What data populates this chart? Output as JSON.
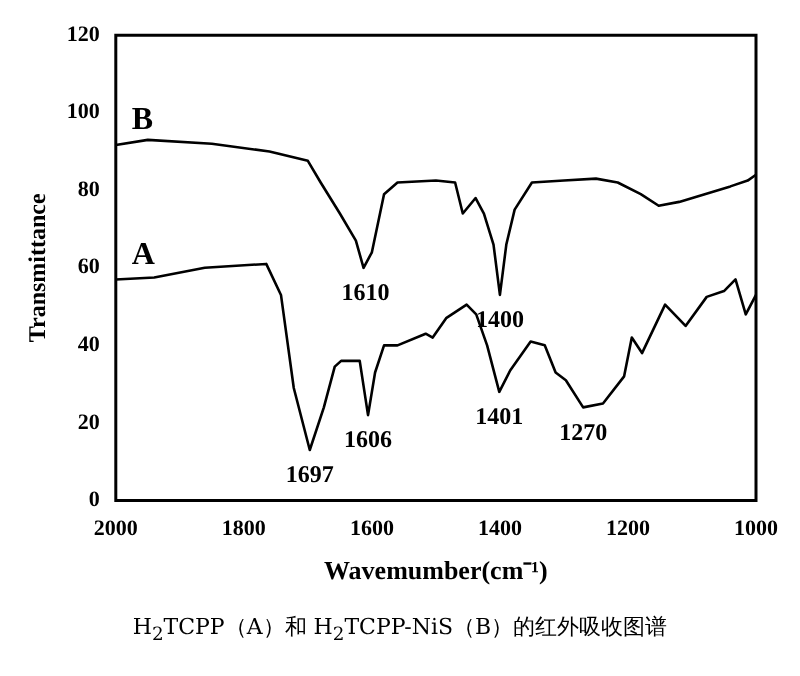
{
  "chart_data": {
    "type": "line",
    "xlabel": "Wavemumber(cm⁻¹)",
    "ylabel": "Transmittance",
    "xlim": [
      2000,
      1000
    ],
    "xticks": [
      2000,
      1800,
      1600,
      1400,
      1200,
      1000
    ],
    "ylim": [
      0,
      120
    ],
    "yticks": [
      0,
      20,
      40,
      60,
      80,
      100,
      120
    ],
    "grid": false,
    "legend": false,
    "marker": "none",
    "line_style": "solid",
    "series": [
      {
        "name": "B",
        "color": "#000000",
        "x": [
          2000,
          1950,
          1850,
          1760,
          1700,
          1680,
          1650,
          1625,
          1613,
          1600,
          1581,
          1560,
          1500,
          1470,
          1458,
          1438,
          1425,
          1410,
          1400,
          1390,
          1377,
          1350,
          1300,
          1250,
          1216,
          1180,
          1152,
          1120,
          1080,
          1040,
          1013,
          1000
        ],
        "values": [
          91.7,
          93,
          92,
          90,
          87.6,
          82,
          74,
          67,
          60,
          64,
          79,
          82,
          82.5,
          82,
          74,
          78,
          74,
          66,
          53,
          66,
          75,
          82,
          82.5,
          83,
          82,
          79,
          76,
          77,
          79,
          81,
          82.5,
          84
        ]
      },
      {
        "name": "A",
        "color": "#000000",
        "x": [
          2000,
          1940,
          1861,
          1765,
          1742,
          1722,
          1697,
          1675,
          1658,
          1648,
          1619,
          1606,
          1595,
          1581,
          1560,
          1516,
          1505,
          1484,
          1452,
          1437,
          1420,
          1401,
          1384,
          1352,
          1330,
          1313,
          1297,
          1270,
          1239,
          1206,
          1194,
          1178,
          1142,
          1110,
          1077,
          1050,
          1032,
          1016,
          1000
        ],
        "values": [
          57,
          57.5,
          60,
          61,
          53,
          29,
          13,
          24,
          34.5,
          36,
          36,
          22,
          33,
          40,
          40,
          43,
          42,
          47,
          50.5,
          48,
          40,
          28,
          33.5,
          41,
          40,
          33,
          31,
          24,
          25,
          32,
          42,
          38,
          50.5,
          45,
          52.5,
          54,
          57,
          48,
          53
        ]
      }
    ],
    "annotations": [
      {
        "text": "1610",
        "x": 1610,
        "y": 60
      },
      {
        "text": "1400",
        "x": 1400,
        "y": 53
      },
      {
        "text": "1697",
        "x": 1697,
        "y": 13
      },
      {
        "text": "1606",
        "x": 1606,
        "y": 22
      },
      {
        "text": "1401",
        "x": 1401,
        "y": 28
      },
      {
        "text": "1270",
        "x": 1270,
        "y": 24
      },
      "H$_{2}$TCPP（A）和 H$_{2}$TCPP-NiS（B）的红外吸收图谱"
    ]
  }
}
